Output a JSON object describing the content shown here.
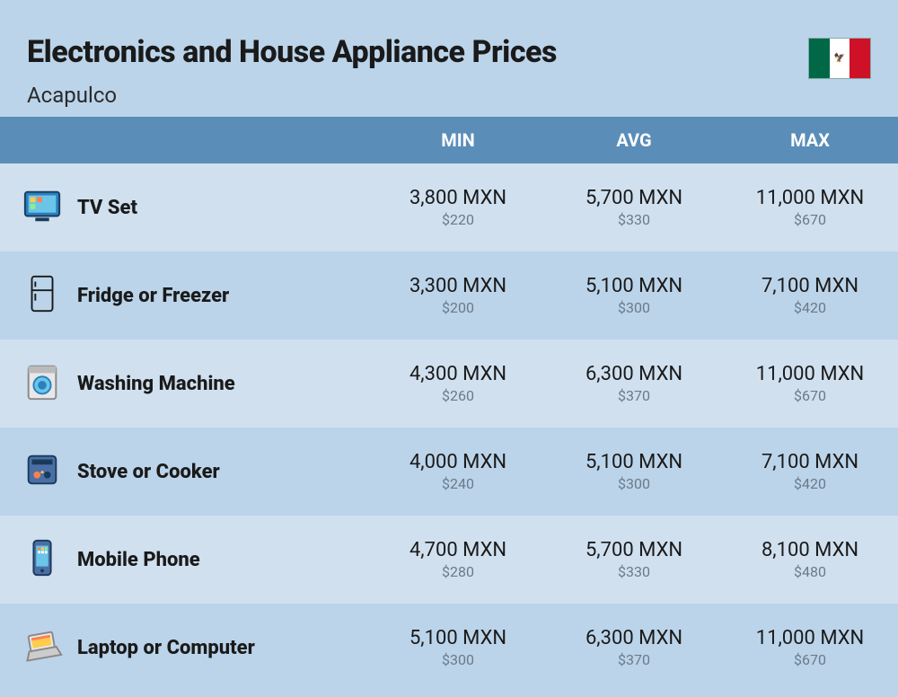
{
  "header": {
    "title": "Electronics and House Appliance Prices",
    "subtitle": "Acapulco"
  },
  "columns": {
    "min": "MIN",
    "avg": "AVG",
    "max": "MAX"
  },
  "currency": {
    "local": "MXN",
    "usd_prefix": "$"
  },
  "colors": {
    "page_bg": "#bbd4ea",
    "row_odd": "#d0e0ef",
    "row_even": "#bbd4ea",
    "header_bg": "#5a8db8",
    "header_text": "#ffffff",
    "mxn_text": "#1a1a1a",
    "usd_text": "#6b7a88",
    "title_text": "#1a1a1a"
  },
  "rows": [
    {
      "icon": "tv-icon",
      "name": "TV Set",
      "min_mxn": "3,800 MXN",
      "min_usd": "$220",
      "avg_mxn": "5,700 MXN",
      "avg_usd": "$330",
      "max_mxn": "11,000 MXN",
      "max_usd": "$670"
    },
    {
      "icon": "fridge-icon",
      "name": "Fridge or Freezer",
      "min_mxn": "3,300 MXN",
      "min_usd": "$200",
      "avg_mxn": "5,100 MXN",
      "avg_usd": "$300",
      "max_mxn": "7,100 MXN",
      "max_usd": "$420"
    },
    {
      "icon": "washer-icon",
      "name": "Washing Machine",
      "min_mxn": "4,300 MXN",
      "min_usd": "$260",
      "avg_mxn": "6,300 MXN",
      "avg_usd": "$370",
      "max_mxn": "11,000 MXN",
      "max_usd": "$670"
    },
    {
      "icon": "stove-icon",
      "name": "Stove or Cooker",
      "min_mxn": "4,000 MXN",
      "min_usd": "$240",
      "avg_mxn": "5,100 MXN",
      "avg_usd": "$300",
      "max_mxn": "7,100 MXN",
      "max_usd": "$420"
    },
    {
      "icon": "phone-icon",
      "name": "Mobile Phone",
      "min_mxn": "4,700 MXN",
      "min_usd": "$280",
      "avg_mxn": "5,700 MXN",
      "avg_usd": "$330",
      "max_mxn": "8,100 MXN",
      "max_usd": "$480"
    },
    {
      "icon": "laptop-icon",
      "name": "Laptop or Computer",
      "min_mxn": "5,100 MXN",
      "min_usd": "$300",
      "avg_mxn": "6,300 MXN",
      "avg_usd": "$370",
      "max_mxn": "11,000 MXN",
      "max_usd": "$670"
    }
  ]
}
